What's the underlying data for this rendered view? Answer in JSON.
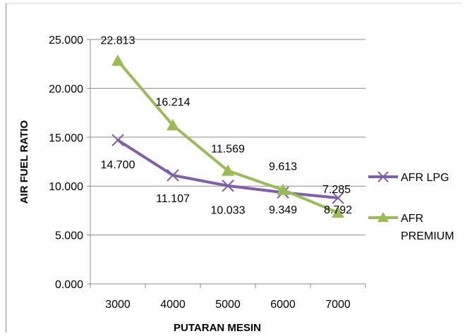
{
  "chart_data": {
    "type": "line",
    "title": "",
    "xlabel": "PUTARAN MESIN",
    "ylabel": "AIR FUEL RATIO",
    "categories": [
      "3000",
      "4000",
      "5000",
      "6000",
      "7000"
    ],
    "ylim": [
      0,
      25
    ],
    "yticks": [
      "0.000",
      "5.000",
      "10.000",
      "15.000",
      "20.000",
      "25.000"
    ],
    "grid": true,
    "legend_position": "right",
    "series": [
      {
        "name": "AFR LPG",
        "values": [
          14.7,
          11.107,
          10.033,
          9.349,
          8.792
        ],
        "labels": [
          "14.700",
          "11.107",
          "10.033",
          "9.349",
          "8.792"
        ],
        "color": "#7F5FA8",
        "marker": "x"
      },
      {
        "name": "AFR PREMIUM",
        "values": [
          22.813,
          16.214,
          11.569,
          9.613,
          7.285
        ],
        "labels": [
          "22.813",
          "16.214",
          "11.569",
          "9.613",
          "7.285"
        ],
        "color": "#9BBB59",
        "marker": "triangle"
      }
    ]
  }
}
